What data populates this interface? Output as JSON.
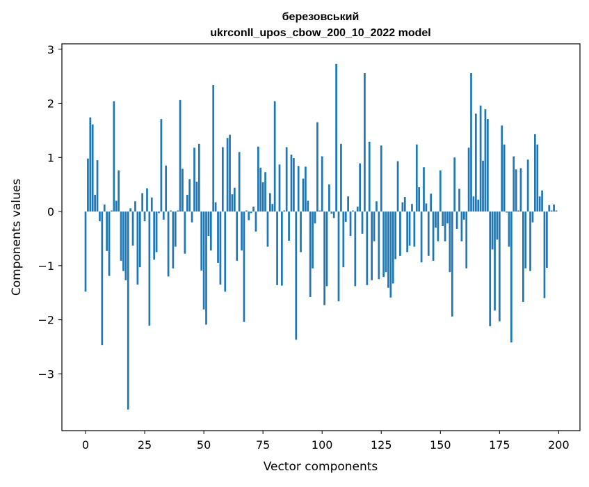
{
  "chart_data": {
    "type": "bar",
    "title_line1": "березовський",
    "title_line2": "ukrconll_upos_cbow_200_10_2022 model",
    "xlabel": "Vector components",
    "ylabel": "Components values",
    "xlim": [
      -10,
      209
    ],
    "ylim": [
      -4.05,
      3.1
    ],
    "xticks": [
      0,
      25,
      50,
      75,
      100,
      125,
      150,
      175,
      200
    ],
    "xtick_labels": [
      "0",
      "25",
      "50",
      "75",
      "100",
      "125",
      "150",
      "175",
      "200"
    ],
    "yticks": [
      3,
      2,
      1,
      0,
      -1,
      -2,
      -3
    ],
    "ytick_labels": [
      "3",
      "2",
      "1",
      "0",
      "−1",
      "−2",
      "−3"
    ],
    "bar_color": "#1f77b4",
    "values": [
      -1.48,
      0.98,
      1.74,
      1.61,
      0.31,
      0.95,
      -0.18,
      -2.47,
      0.13,
      -0.73,
      -1.19,
      0.02,
      2.04,
      0.2,
      0.76,
      -0.91,
      -1.1,
      -1.27,
      -3.66,
      0.06,
      -0.63,
      0.19,
      -1.35,
      -1.03,
      0.34,
      -0.18,
      0.43,
      -2.11,
      0.26,
      -0.89,
      -0.75,
      -0.03,
      1.71,
      -0.15,
      0.85,
      -1.2,
      0.02,
      -1.05,
      -0.65,
      0.02,
      2.06,
      0.79,
      -0.78,
      0.31,
      0.6,
      -0.2,
      1.18,
      0.55,
      1.25,
      -1.09,
      -1.81,
      -2.09,
      -0.45,
      -0.72,
      2.34,
      0.17,
      -0.95,
      -1.35,
      1.19,
      -1.48,
      1.36,
      1.42,
      0.32,
      0.44,
      -0.91,
      1.1,
      -0.72,
      -2.04,
      0.02,
      -0.16,
      -0.03,
      0.09,
      -0.37,
      1.2,
      0.81,
      0.54,
      0.73,
      -0.65,
      0.34,
      0.14,
      2.04,
      -1.36,
      0.87,
      -1.37,
      0.02,
      1.19,
      -0.54,
      1.05,
      0.99,
      -2.37,
      0.84,
      -0.75,
      0.61,
      0.83,
      0.2,
      -1.58,
      -1.05,
      -0.22,
      1.65,
      0.02,
      1.02,
      -1.73,
      -1.38,
      0.5,
      -0.04,
      -0.12,
      2.73,
      -1.66,
      1.25,
      -1.03,
      -0.19,
      0.28,
      -0.45,
      0.02,
      -1.38,
      0.09,
      0.89,
      -0.41,
      2.56,
      -1.36,
      1.29,
      -1.27,
      -0.55,
      0.19,
      -1.25,
      1.22,
      -1.21,
      -1.12,
      -1.41,
      -1.59,
      -1.33,
      -0.88,
      0.93,
      -0.82,
      0.17,
      0.27,
      -0.75,
      -0.63,
      0.14,
      -0.65,
      1.24,
      0.45,
      -0.94,
      0.82,
      0.15,
      -0.82,
      0.33,
      -0.91,
      -0.3,
      -0.55,
      0.76,
      -0.27,
      -0.55,
      -0.22,
      -1.12,
      -1.94,
      1.0,
      -0.32,
      0.42,
      -0.55,
      -0.15,
      -1.05,
      1.18,
      2.56,
      0.28,
      1.81,
      0.22,
      1.96,
      0.94,
      1.89,
      1.71,
      -2.12,
      -0.7,
      -1.83,
      -0.52,
      -2.03,
      1.59,
      1.24,
      -0.02,
      -0.65,
      -2.42,
      1.02,
      0.78,
      0.02,
      0.8,
      -1.67,
      -1.05,
      0.96,
      -1.1,
      -0.2,
      1.43,
      1.24,
      0.28,
      0.39,
      -1.6,
      -1.04,
      0.12,
      0.02,
      0.13,
      0.02
    ]
  }
}
